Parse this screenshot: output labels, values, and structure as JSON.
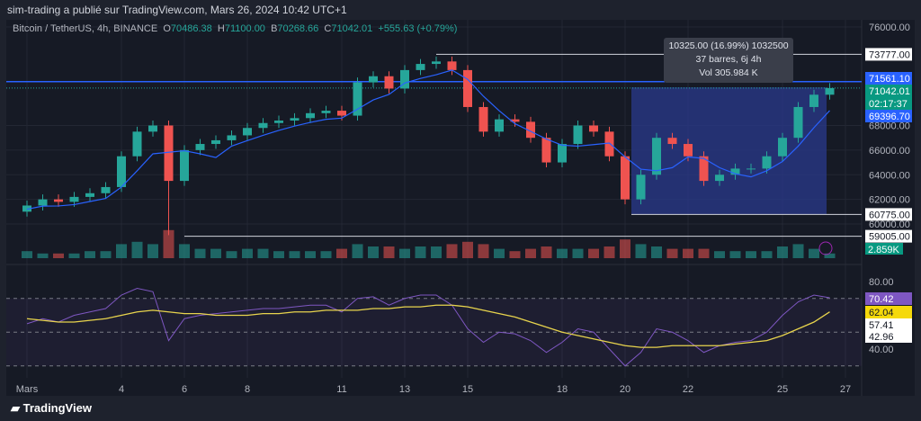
{
  "header": {
    "published": "sim-trading a publié sur TradingView.com, Mars 26, 2024 10:42 UTC+1"
  },
  "legend": {
    "symbol": "Bitcoin / TetherUS, 4h, BINANCE",
    "open_label": "O",
    "open": "70486.38",
    "high_label": "H",
    "high": "71100.00",
    "low_label": "B",
    "low": "70268.66",
    "close_label": "C",
    "close": "71042.01",
    "change": "+555.63 (+0.79%)"
  },
  "measure_tooltip": {
    "line1": "10325.00 (16.99%) 1032500",
    "line2": "37 barres, 6j 4h",
    "line3": "Vol 305.984 K"
  },
  "footer": {
    "brand": "TradingView"
  },
  "colors": {
    "up": "#26a69a",
    "down": "#ef5350",
    "ma": "#2962ff",
    "rsi": "#7e57c2",
    "rsi_ma": "#e8d44d",
    "hline": "#2962ff",
    "range": "#2a3a8c"
  },
  "chart_data": {
    "type": "candlestick",
    "x_ticks": [
      "Mars",
      "4",
      "6",
      "8",
      "11",
      "13",
      "15",
      "18",
      "20",
      "22",
      "25",
      "27"
    ],
    "x_tick_days": [
      1,
      4,
      6,
      8,
      11,
      13,
      15,
      18,
      20,
      22,
      25,
      27
    ],
    "y_ticks": [
      "76000.00",
      "68000.00",
      "66000.00",
      "64000.00",
      "62000.00",
      "60000.00"
    ],
    "y_tick_values": [
      76000,
      68000,
      66000,
      64000,
      62000,
      60000
    ],
    "price_labels": [
      {
        "text": "73777.00",
        "value": 73777,
        "style": "white"
      },
      {
        "text": "71561.10",
        "value": 71561.1,
        "style": "blue"
      },
      {
        "text": "71042.01",
        "value": 71042.01,
        "style": "green"
      },
      {
        "text": "02:17:37",
        "value": 70900,
        "style": "green"
      },
      {
        "text": "69396.70",
        "value": 69396.7,
        "style": "blue"
      },
      {
        "text": "60775.00",
        "value": 60775,
        "style": "white"
      },
      {
        "text": "59005.00",
        "value": 59005,
        "style": "white"
      }
    ],
    "volume_label": "2.859K",
    "closes_12h_from_mar1": [
      61500,
      62000,
      61800,
      62200,
      62500,
      63000,
      65500,
      67500,
      68000,
      63500,
      66000,
      66500,
      66800,
      67200,
      67800,
      68200,
      68400,
      68600,
      69000,
      69200,
      68800,
      71500,
      72000,
      71000,
      72500,
      73000,
      73200,
      72500,
      69500,
      67500,
      68500,
      68300,
      67000,
      65000,
      66500,
      68000,
      67500,
      65500,
      62000,
      64000,
      67000,
      66500,
      65500,
      63500,
      64000,
      64500,
      64500,
      65500,
      67000,
      69500,
      70500,
      71042
    ],
    "volume": [
      3,
      2,
      2,
      2,
      3,
      3,
      6,
      7,
      6,
      12,
      6,
      4,
      4,
      3,
      4,
      4,
      3,
      3,
      3,
      3,
      4,
      6,
      5,
      5,
      4,
      5,
      5,
      6,
      7,
      6,
      4,
      3,
      4,
      5,
      4,
      4,
      4,
      5,
      8,
      6,
      5,
      4,
      4,
      4,
      3,
      3,
      3,
      3,
      5,
      6,
      4,
      2
    ],
    "rsi": {
      "ticks": [
        "80.00",
        "40.00"
      ],
      "tick_values": [
        80,
        40
      ],
      "bands": [
        70,
        50,
        30
      ],
      "values": [
        55,
        58,
        56,
        60,
        62,
        64,
        72,
        76,
        74,
        45,
        58,
        60,
        61,
        62,
        63,
        64,
        64,
        65,
        66,
        66,
        62,
        70,
        71,
        66,
        70,
        72,
        72,
        66,
        52,
        44,
        50,
        49,
        45,
        38,
        44,
        52,
        50,
        40,
        30,
        38,
        52,
        50,
        45,
        38,
        42,
        44,
        45,
        50,
        60,
        68,
        72,
        70.42
      ],
      "ma": [
        58,
        57,
        56,
        56,
        57,
        58,
        60,
        62,
        63,
        62,
        61,
        61,
        60,
        60,
        60,
        61,
        61,
        62,
        62,
        63,
        63,
        63,
        64,
        64,
        65,
        65,
        66,
        66,
        65,
        63,
        61,
        59,
        56,
        53,
        50,
        48,
        46,
        44,
        42,
        41,
        41,
        42,
        42,
        42,
        42,
        43,
        44,
        45,
        48,
        52,
        56,
        62.04
      ],
      "labels": [
        {
          "text": "70.42",
          "value": 70.42,
          "style": "purple"
        },
        {
          "text": "62.04",
          "value": 62.04,
          "style": "yellow"
        },
        {
          "text": "57.41",
          "value": 57.41,
          "style": "white"
        },
        {
          "text": "42.96",
          "value": 42.96,
          "style": "white"
        }
      ]
    },
    "hlines": [
      71561.1
    ],
    "measure_range": {
      "start_day": 20.2,
      "end_day": 26.4,
      "low": 60775,
      "high": 71100
    },
    "hrays": [
      {
        "value": 73777,
        "start_day": 14
      },
      {
        "value": 60775,
        "start_day": 20.2
      },
      {
        "value": 59005,
        "start_day": 6
      }
    ]
  }
}
